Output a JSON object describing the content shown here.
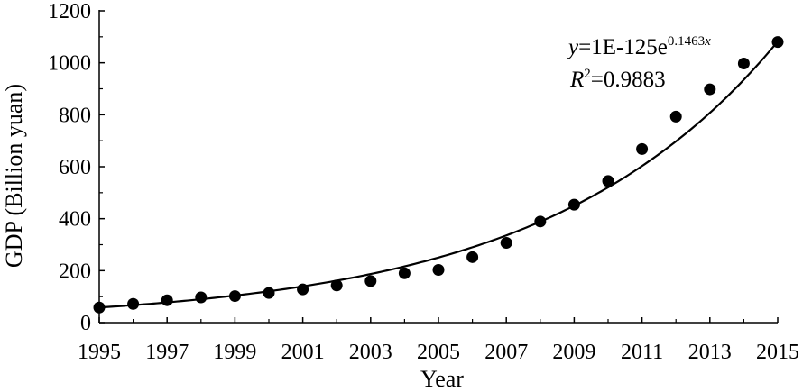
{
  "chart_data": {
    "type": "scatter",
    "title": "",
    "xlabel": "Year",
    "ylabel": "GDP (Billion yuan)",
    "xlim": [
      1995,
      2015
    ],
    "ylim": [
      0,
      1200
    ],
    "x_ticks": [
      "1995",
      "1997",
      "1999",
      "2001",
      "2003",
      "2005",
      "2007",
      "2009",
      "2011",
      "2013",
      "2015"
    ],
    "y_ticks": [
      "0",
      "200",
      "400",
      "600",
      "800",
      "1000",
      "1200"
    ],
    "grid": false,
    "series": [
      {
        "marker": "circle",
        "color": "#000000",
        "x": [
          1995,
          1996,
          1997,
          1998,
          1999,
          2000,
          2001,
          2002,
          2003,
          2004,
          2005,
          2006,
          2007,
          2008,
          2009,
          2010,
          2011,
          2012,
          2013,
          2014,
          2015
        ],
        "y": [
          58,
          72,
          86,
          97,
          102,
          114,
          128,
          143,
          160,
          190,
          203,
          252,
          307,
          389,
          454,
          545,
          668,
          793,
          898,
          997,
          1080
        ]
      }
    ],
    "trendline": {
      "type": "exponential",
      "a": 1e-125,
      "b": 0.1463,
      "color": "#000000"
    },
    "annotation": {
      "eq_y": "y",
      "eq_mid": "=1E-125e",
      "eq_exp": "0.1463",
      "eq_exp_x": "x",
      "r2_r": "R",
      "r2_sup": "2",
      "r2_value": "=0.9883"
    }
  }
}
